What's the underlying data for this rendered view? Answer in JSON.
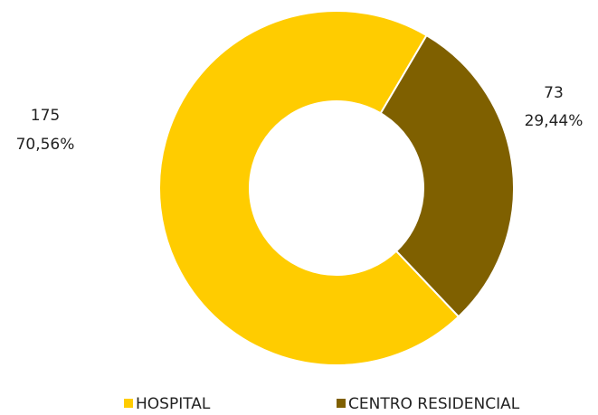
{
  "chart_data": {
    "type": "donut",
    "categories": [
      "HOSPITAL",
      "CENTRO RESIDENCIAL"
    ],
    "values": [
      175,
      73
    ],
    "percentages": [
      70.56,
      29.44
    ],
    "percentage_labels": [
      "70,56%",
      "29,44%"
    ],
    "colors": [
      "#ffcc00",
      "#7f6000"
    ],
    "legend": "bottom"
  }
}
